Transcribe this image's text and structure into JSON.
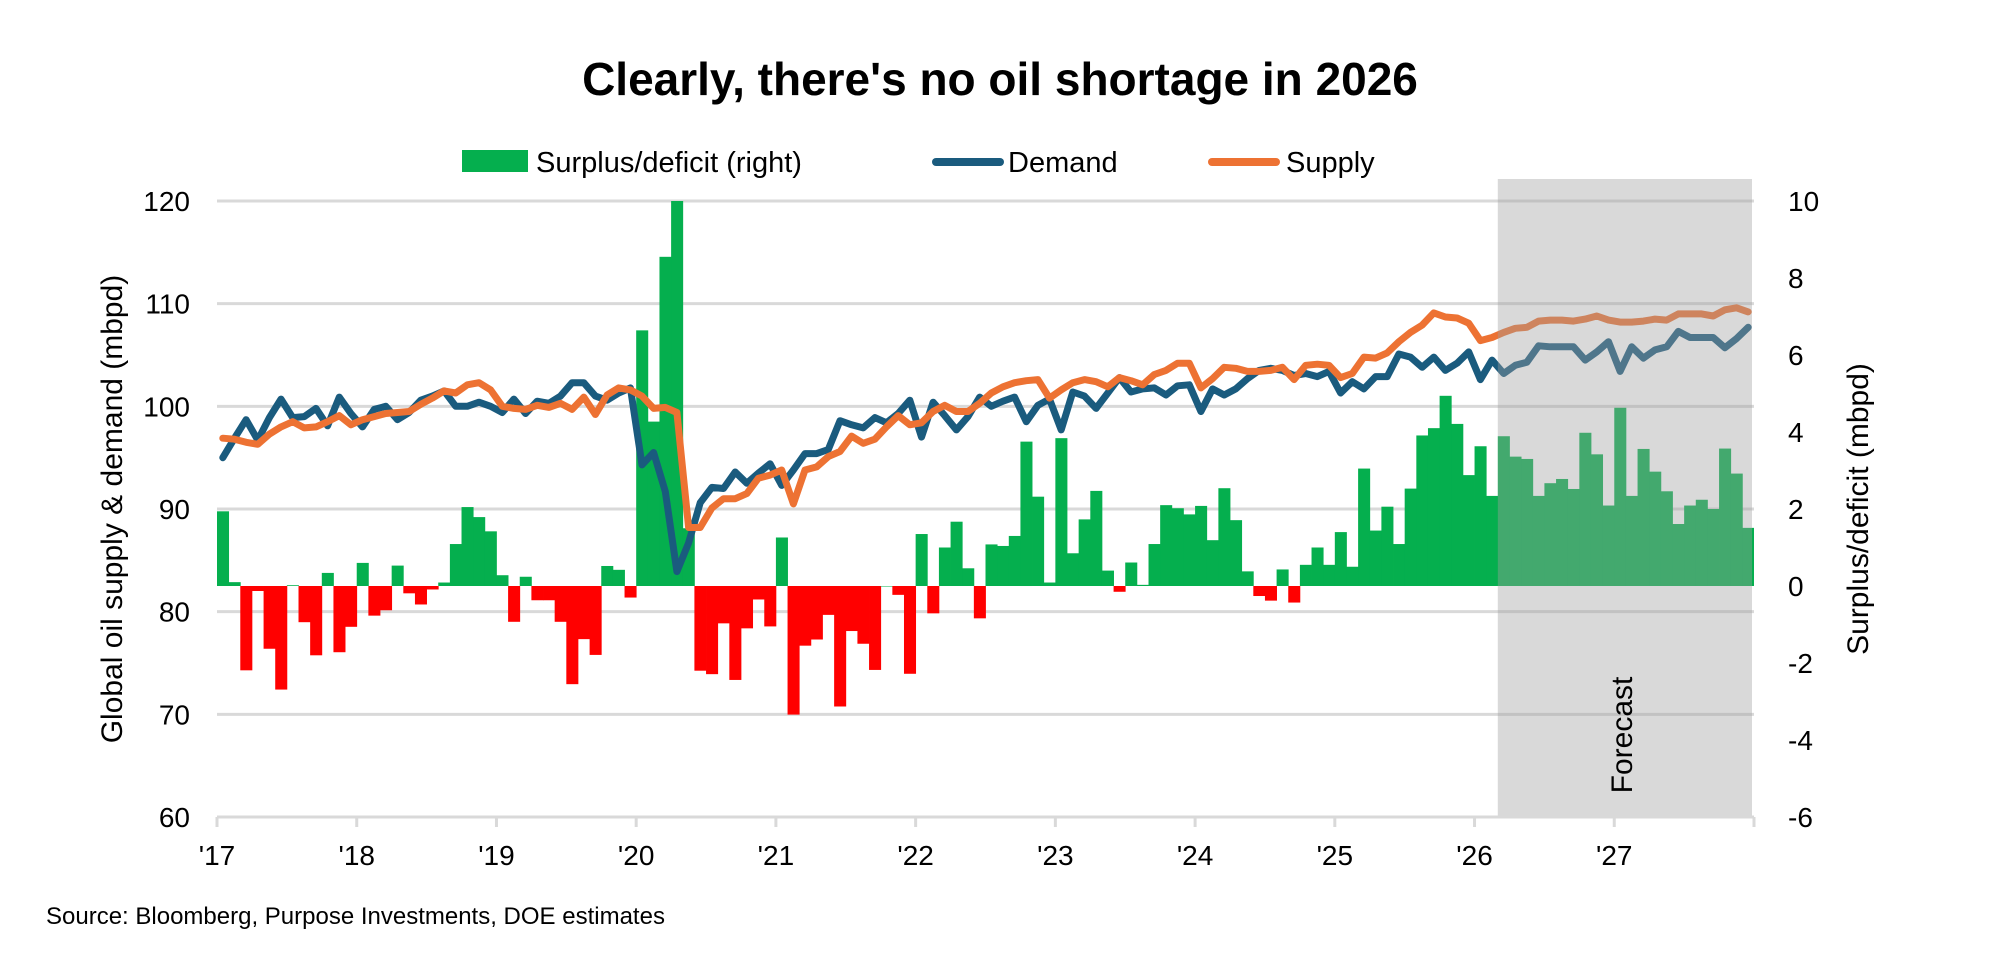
{
  "chart_data": {
    "type": "bar",
    "title": "Clearly, there's no oil shortage in 2026",
    "source": "Source: Bloomberg, Purpose Investments, DOE estimates",
    "annotation": "Forecast",
    "forecast_start": "2026-03",
    "x_start": "2017-01",
    "frequency": "monthly",
    "x_ticks": [
      "'17",
      "'18",
      "'19",
      "'20",
      "'21",
      "'22",
      "'23",
      "'24",
      "'25",
      "'26",
      "'27",
      ""
    ],
    "ylabel_left": "Global oil supply & demand (mbpd)",
    "ylabel_right": "Surplus/deficit (mbpd)",
    "ylim_left": [
      60,
      120
    ],
    "yticks_left": [
      "60",
      "70",
      "80",
      "90",
      "100",
      "110",
      "120"
    ],
    "ylim_right": [
      -6,
      10
    ],
    "yticks_right": [
      "-6",
      "-4",
      "-2",
      "0",
      "2",
      "4",
      "6",
      "8",
      "10"
    ],
    "grid": true,
    "legend_position": "top",
    "series": [
      {
        "name": "Surplus/deficit (right)",
        "type": "bar",
        "axis": "right",
        "color": "#05AF4E",
        "negative_color": "#FF0000",
        "values": [
          1.94,
          0.1,
          -2.19,
          -0.13,
          -1.63,
          -2.69,
          0.02,
          -0.94,
          -1.8,
          0.34,
          -1.72,
          -1.06,
          0.6,
          -0.77,
          -0.63,
          0.53,
          -0.19,
          -0.48,
          -0.09,
          0.09,
          1.09,
          2.05,
          1.79,
          1.42,
          0.28,
          -0.93,
          0.24,
          -0.37,
          -0.37,
          -0.93,
          -2.55,
          -1.38,
          -1.79,
          0.52,
          0.42,
          -0.3,
          6.64,
          4.27,
          8.55,
          11,
          1.5,
          -2.2,
          -2.29,
          -0.97,
          -2.44,
          -1.1,
          -0.35,
          -1.05,
          1.26,
          -3.34,
          -1.55,
          -1.39,
          -0.75,
          -3.13,
          -1.17,
          -1.5,
          -2.18,
          0,
          -0.23,
          -2.28,
          1.35,
          -0.71,
          1.0,
          1.67,
          0.46,
          -0.84,
          1.08,
          1.04,
          1.3,
          3.75,
          2.32,
          0.09,
          3.84,
          0.85,
          1.73,
          2.47,
          0.4,
          -0.15,
          0.61,
          0.03,
          1.09,
          2.1,
          2.02,
          1.86,
          2.08,
          1.19,
          2.54,
          1.71,
          0.38,
          -0.26,
          -0.38,
          0.43,
          -0.43,
          0.55,
          1.0,
          0.55,
          1.4,
          0.5,
          3.05,
          1.44,
          2.06,
          1.09,
          2.53,
          3.91,
          4.1,
          4.94,
          4.21,
          2.88,
          3.63,
          2.34,
          3.89,
          3.36,
          3.3,
          2.34,
          2.67,
          2.78,
          2.52,
          3.98,
          3.42,
          2.09,
          4.63,
          2.34,
          3.56,
          2.97,
          2.46,
          1.61,
          2.09,
          2.24,
          2.0,
          3.57,
          2.92,
          1.51
        ]
      },
      {
        "name": "Demand",
        "type": "line",
        "axis": "left",
        "color": "#1A5B7E",
        "values": [
          95,
          96.9,
          98.7,
          96.7,
          98.9,
          100.7,
          98.9,
          99,
          99.8,
          98.1,
          100.9,
          99.3,
          98,
          99.7,
          100,
          98.7,
          99.4,
          100.6,
          101,
          101.5,
          100,
          100,
          100.4,
          100,
          99.4,
          100.7,
          99.3,
          100.5,
          100.3,
          101,
          102.3,
          102.3,
          101,
          100.6,
          101.3,
          101.8,
          94.3,
          95.5,
          91.7,
          83.9,
          86.7,
          90.6,
          92.1,
          92,
          93.6,
          92.5,
          93.5,
          94.4,
          92.3,
          93.8,
          95.4,
          95.4,
          95.8,
          98.6,
          98.2,
          97.9,
          98.9,
          98.4,
          99.3,
          100.6,
          97,
          100.4,
          99.1,
          97.7,
          99,
          100.9,
          100,
          100.5,
          100.9,
          98.5,
          100.1,
          100.7,
          97.7,
          101.4,
          101.0,
          99.8,
          101.3,
          102.8,
          101.4,
          101.7,
          101.8,
          101.1,
          102,
          102.1,
          99.5,
          101.7,
          101.1,
          101.7,
          102.7,
          103.5,
          103.7,
          103.5,
          103,
          103.2,
          102.9,
          103.4,
          101.3,
          102.4,
          101.7,
          102.9,
          102.9,
          105.1,
          104.8,
          103.8,
          104.8,
          103.5,
          104.2,
          105.3,
          102.6,
          104.5,
          103.2,
          104,
          104.3,
          105.9,
          105.8,
          105.8,
          105.8,
          104.5,
          105.3,
          106.3,
          103.4,
          105.8,
          104.7,
          105.5,
          105.8,
          107.3,
          106.7,
          106.7,
          106.7,
          105.7,
          106.6,
          107.7
        ]
      },
      {
        "name": "Supply",
        "type": "line",
        "axis": "left",
        "color": "#ED7233",
        "values": [
          96.9,
          96.8,
          96.5,
          96.3,
          97.3,
          98,
          98.5,
          97.9,
          98,
          98.5,
          99.1,
          98.2,
          98.7,
          99,
          99.3,
          99.4,
          99.5,
          100.2,
          100.8,
          101.5,
          101.3,
          102.1,
          102.3,
          101.6,
          100,
          99.8,
          99.7,
          100.1,
          99.9,
          100.3,
          99.7,
          100.9,
          99.2,
          101.1,
          101.8,
          101.6,
          101,
          99.8,
          99.9,
          99.4,
          88.2,
          88.2,
          90.1,
          91,
          91,
          91.5,
          93,
          93.3,
          93.8,
          90.5,
          93.8,
          94.1,
          95.1,
          95.6,
          97.1,
          96.4,
          96.8,
          98,
          99.1,
          98.2,
          98.4,
          99.5,
          100.1,
          99.5,
          99.5,
          100.3,
          101.3,
          101.9,
          102.3,
          102.5,
          102.6,
          100.8,
          101.6,
          102.3,
          102.6,
          102.4,
          101.9,
          102.8,
          102.5,
          102.1,
          103.1,
          103.5,
          104.2,
          104.2,
          101.8,
          102.7,
          103.8,
          103.7,
          103.4,
          103.4,
          103.5,
          103.8,
          102.6,
          104,
          104.1,
          104,
          102.8,
          103.2,
          104.8,
          104.7,
          105.2,
          106.3,
          107.2,
          107.9,
          109.1,
          108.7,
          108.6,
          108.1,
          106.4,
          106.7,
          107.2,
          107.6,
          107.7,
          108.3,
          108.4,
          108.4,
          108.3,
          108.5,
          108.8,
          108.4,
          108.2,
          108.2,
          108.3,
          108.5,
          108.4,
          109,
          109,
          109,
          108.8,
          109.4,
          109.6,
          109.2
        ]
      }
    ],
    "colors": {
      "forecast_shade": "#A0A0A0",
      "gridline": "#D9D9D9"
    }
  }
}
